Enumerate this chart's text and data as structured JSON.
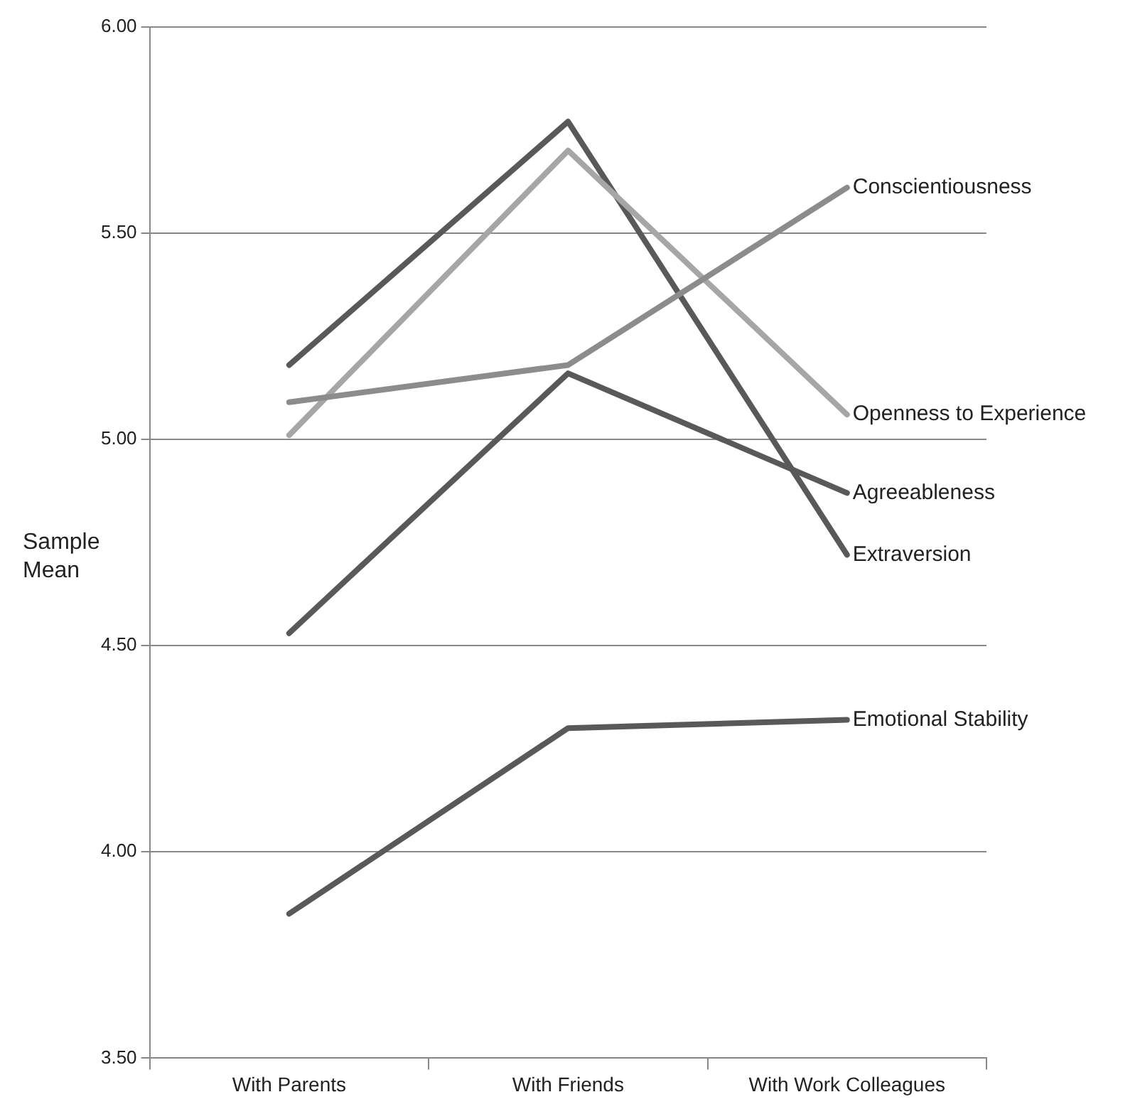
{
  "chart_data": {
    "type": "line",
    "ylabel": "Sample Mean",
    "categories": [
      "With Parents",
      "With Friends",
      "With Work Colleagues"
    ],
    "ylim": [
      3.5,
      6
    ],
    "yticks": [
      {
        "value": 3.5,
        "label": "3.50"
      },
      {
        "value": 4,
        "label": "4.00"
      },
      {
        "value": 4.5,
        "label": "4.50"
      },
      {
        "value": 5,
        "label": "5.00"
      },
      {
        "value": 5.5,
        "label": "5.50"
      },
      {
        "value": 6,
        "label": "6.00"
      }
    ],
    "grid": "y",
    "legend": false,
    "marker": "none",
    "series": [
      {
        "name": "Conscientiousness",
        "color": "#8c8c8c",
        "values": [
          5.09,
          5.18,
          5.61
        ]
      },
      {
        "name": "Openness to Experience",
        "color": "#a6a6a6",
        "values": [
          5.01,
          5.7,
          5.06
        ]
      },
      {
        "name": "Agreeableness",
        "color": "#595959",
        "values": [
          4.53,
          5.16,
          4.87
        ]
      },
      {
        "name": "Extraversion",
        "color": "#595959",
        "values": [
          5.18,
          5.77,
          4.72
        ]
      },
      {
        "name": "Emotional Stability",
        "color": "#595959",
        "values": [
          3.85,
          4.3,
          4.32
        ]
      }
    ]
  }
}
